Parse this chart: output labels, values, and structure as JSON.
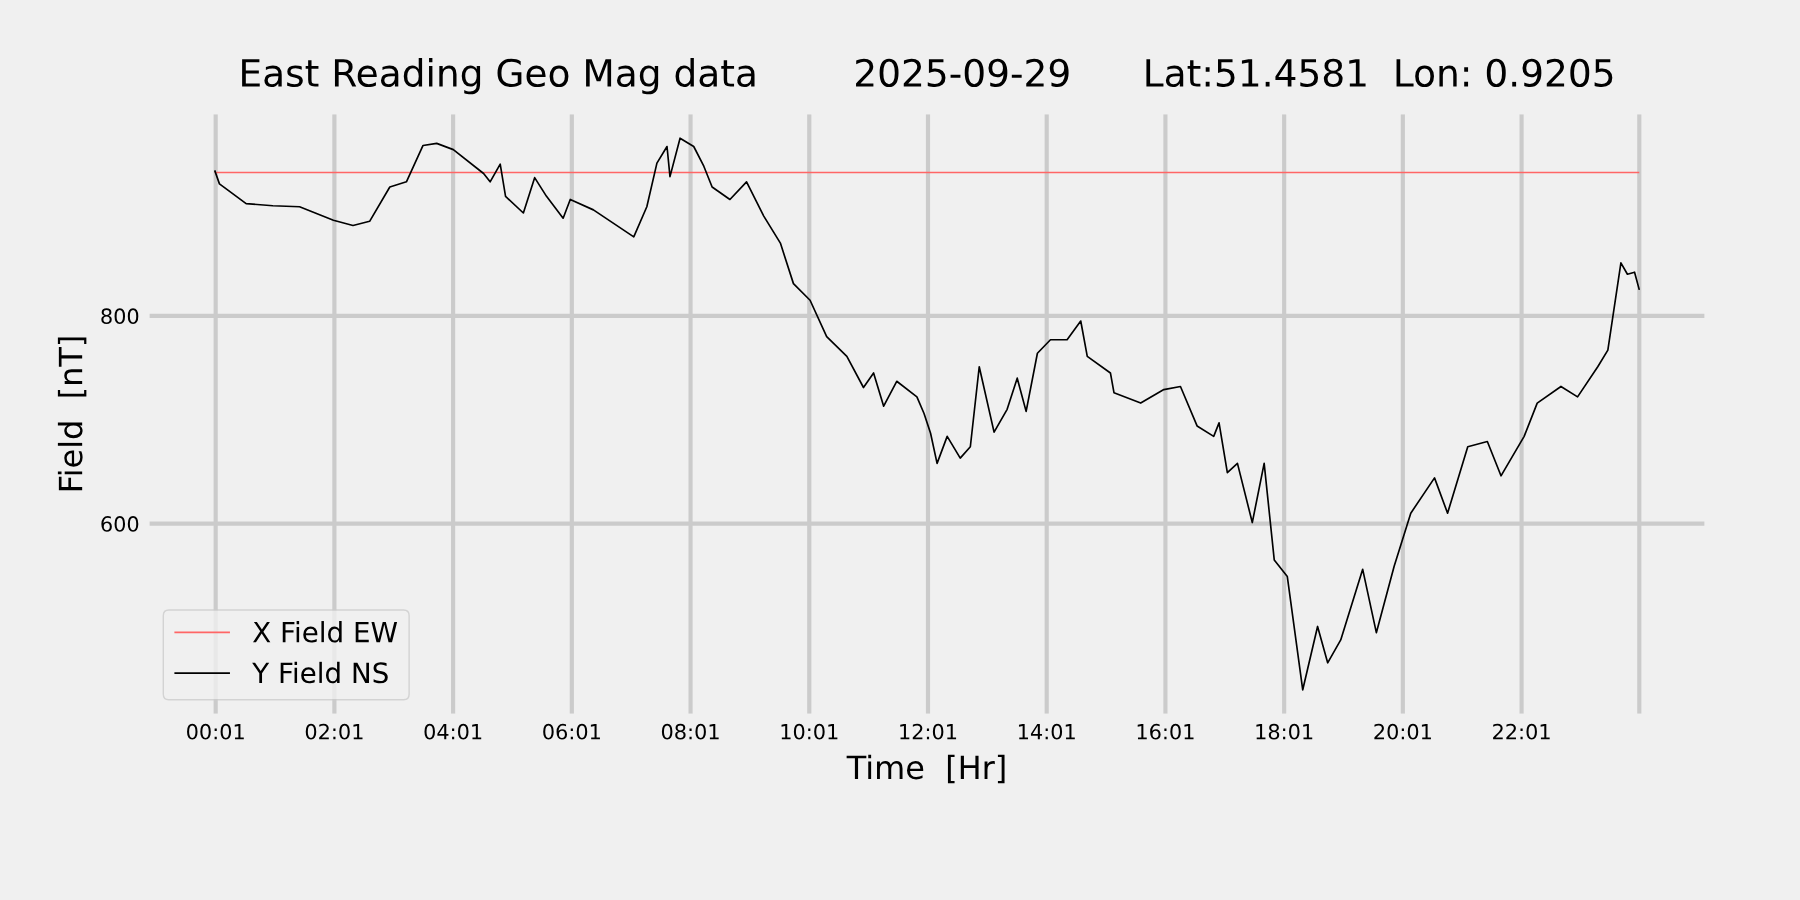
{
  "chart_data": {
    "type": "line",
    "title": "East Reading Geo Mag data        2025-09-29      Lat:51.4581  Lon: 0.9205",
    "xlabel": "Time  [Hr]",
    "ylabel": "Field  [nT]",
    "series": [
      {
        "name": "X Field EW",
        "color": "#ff6666",
        "x": [
          0.0,
          24.0
        ],
        "values": [
          938,
          938
        ]
      },
      {
        "name": "Y Field NS",
        "color": "#000000",
        "x": [
          0.0,
          0.08,
          0.53,
          0.98,
          1.43,
          2.0,
          2.33,
          2.61,
          2.95,
          3.23,
          3.51,
          3.74,
          4.02,
          4.53,
          4.64,
          4.81,
          4.9,
          5.2,
          5.39,
          5.59,
          5.87,
          5.99,
          6.38,
          6.72,
          7.06,
          7.28,
          7.45,
          7.62,
          7.67,
          7.84,
          8.07,
          8.24,
          8.38,
          8.68,
          8.96,
          9.25,
          9.53,
          9.75,
          10.03,
          10.31,
          10.65,
          10.93,
          11.1,
          11.27,
          11.49,
          11.83,
          11.95,
          12.06,
          12.17,
          12.34,
          12.56,
          12.73,
          12.88,
          13.13,
          13.35,
          13.52,
          13.67,
          13.86,
          14.08,
          14.36,
          14.59,
          14.7,
          15.09,
          15.15,
          15.6,
          15.99,
          16.27,
          16.55,
          16.83,
          16.92,
          17.06,
          17.23,
          17.48,
          17.68,
          17.85,
          18.07,
          18.33,
          18.58,
          18.75,
          18.97,
          19.34,
          19.57,
          19.87,
          20.15,
          20.55,
          20.77,
          21.11,
          21.44,
          21.67,
          22.06,
          22.28,
          22.68,
          22.96,
          23.3,
          23.47,
          23.69,
          23.8,
          23.92,
          24.0
        ],
        "values": [
          940,
          927,
          908,
          906,
          905,
          892,
          887,
          891,
          924,
          929,
          964,
          966,
          960,
          937,
          929,
          946,
          915,
          899,
          933,
          915,
          894,
          912,
          902,
          889,
          876,
          905,
          947,
          963,
          934,
          971,
          963,
          944,
          924,
          912,
          929,
          896,
          870,
          831,
          815,
          780,
          761,
          731,
          745,
          713,
          737,
          722,
          706,
          687,
          658,
          684,
          663,
          674,
          751,
          688,
          710,
          740,
          708,
          764,
          777,
          777,
          795,
          761,
          745,
          726,
          716,
          729,
          732,
          694,
          684,
          697,
          649,
          658,
          601,
          658,
          565,
          549,
          440,
          501,
          466,
          488,
          556,
          495,
          559,
          610,
          644,
          610,
          674,
          679,
          646,
          684,
          716,
          732,
          722,
          751,
          767,
          851,
          840,
          842,
          825
        ]
      }
    ],
    "xlim": [
      -1.1,
      25.1
    ],
    "ylim": [
      417,
      994
    ],
    "xticks": [
      {
        "value": 0.0167,
        "label": "00:01"
      },
      {
        "value": 2.0167,
        "label": "02:01"
      },
      {
        "value": 4.0167,
        "label": "04:01"
      },
      {
        "value": 6.0167,
        "label": "06:01"
      },
      {
        "value": 8.0167,
        "label": "08:01"
      },
      {
        "value": 10.0167,
        "label": "10:01"
      },
      {
        "value": 12.0167,
        "label": "12:01"
      },
      {
        "value": 14.0167,
        "label": "14:01"
      },
      {
        "value": 16.0167,
        "label": "16:01"
      },
      {
        "value": 18.0167,
        "label": "18:01"
      },
      {
        "value": 20.0167,
        "label": "20:01"
      },
      {
        "value": 22.0167,
        "label": "22:01"
      },
      {
        "value": 24.0,
        "label": null
      }
    ],
    "yticks": [
      600,
      800
    ],
    "grid": true,
    "legend": "bottom left",
    "line_style": "solid",
    "marker": "none"
  }
}
